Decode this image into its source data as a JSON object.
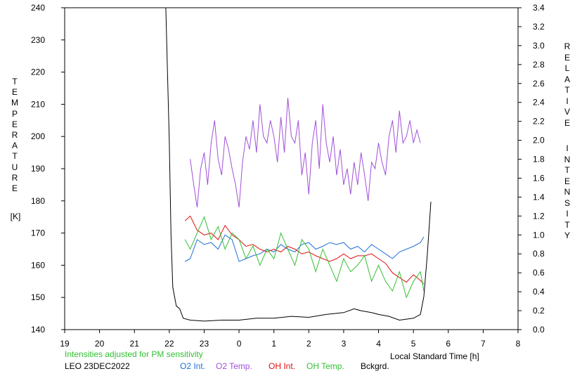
{
  "chart_data": {
    "type": "line",
    "xlabel": "Local Standard Time [h]",
    "x_ticks": [
      "19",
      "20",
      "21",
      "22",
      "23",
      "0",
      "1",
      "2",
      "3",
      "4",
      "5",
      "6",
      "7",
      "8"
    ],
    "x_range": [
      19,
      32
    ],
    "y_left": {
      "label_letters": [
        "T",
        "E",
        "M",
        "P",
        "E",
        "R",
        "A",
        "T",
        "U",
        "R",
        "E"
      ],
      "unit": "[K]",
      "range": [
        140,
        240
      ],
      "ticks": [
        "140",
        "150",
        "160",
        "170",
        "180",
        "190",
        "200",
        "210",
        "220",
        "230",
        "240"
      ]
    },
    "y_right": {
      "label_word1": [
        "R",
        "E",
        "L",
        "A",
        "T",
        "I",
        "V",
        "E"
      ],
      "label_word2": [
        "I",
        "N",
        "T",
        "E",
        "N",
        "S",
        "I",
        "T",
        "Y"
      ],
      "range": [
        0.0,
        3.4
      ],
      "ticks": [
        "0.0",
        "0.2",
        "0.4",
        "0.6",
        "0.8",
        "1.0",
        "1.2",
        "1.4",
        "1.6",
        "1.8",
        "2.0",
        "2.2",
        "2.4",
        "2.6",
        "2.8",
        "3.0",
        "3.2",
        "3.4"
      ]
    },
    "note": "Intensities adjusted for PM sensitivity",
    "station": "LEO 23DEC2022",
    "series": [
      {
        "name": "O2 Int.",
        "color": "#1f6fd6",
        "axis": "right",
        "points": [
          [
            22.45,
            0.72
          ],
          [
            22.6,
            0.75
          ],
          [
            22.8,
            0.95
          ],
          [
            23.0,
            0.9
          ],
          [
            23.2,
            0.92
          ],
          [
            23.4,
            0.85
          ],
          [
            23.6,
            1.0
          ],
          [
            23.8,
            0.95
          ],
          [
            24.0,
            0.72
          ],
          [
            24.2,
            0.75
          ],
          [
            24.4,
            0.78
          ],
          [
            24.6,
            0.8
          ],
          [
            24.8,
            0.85
          ],
          [
            25.0,
            0.82
          ],
          [
            25.2,
            0.9
          ],
          [
            25.4,
            0.85
          ],
          [
            25.6,
            0.82
          ],
          [
            25.8,
            0.9
          ],
          [
            26.0,
            0.92
          ],
          [
            26.2,
            0.85
          ],
          [
            26.4,
            0.88
          ],
          [
            26.6,
            0.92
          ],
          [
            26.8,
            0.9
          ],
          [
            27.0,
            0.92
          ],
          [
            27.2,
            0.85
          ],
          [
            27.4,
            0.88
          ],
          [
            27.6,
            0.82
          ],
          [
            27.8,
            0.9
          ],
          [
            28.0,
            0.85
          ],
          [
            28.2,
            0.8
          ],
          [
            28.4,
            0.75
          ],
          [
            28.6,
            0.82
          ],
          [
            28.8,
            0.85
          ],
          [
            29.0,
            0.88
          ],
          [
            29.2,
            0.92
          ],
          [
            29.3,
            0.98
          ]
        ]
      },
      {
        "name": "O2 Temp.",
        "color": "#a050d8",
        "axis": "left",
        "points": [
          [
            22.6,
            193
          ],
          [
            22.7,
            185
          ],
          [
            22.8,
            178
          ],
          [
            22.9,
            190
          ],
          [
            23.0,
            195
          ],
          [
            23.1,
            185
          ],
          [
            23.2,
            198
          ],
          [
            23.3,
            205
          ],
          [
            23.4,
            193
          ],
          [
            23.5,
            188
          ],
          [
            23.6,
            200
          ],
          [
            23.7,
            196
          ],
          [
            23.8,
            190
          ],
          [
            23.9,
            185
          ],
          [
            24.0,
            178
          ],
          [
            24.1,
            192
          ],
          [
            24.2,
            200
          ],
          [
            24.3,
            196
          ],
          [
            24.4,
            205
          ],
          [
            24.5,
            195
          ],
          [
            24.6,
            210
          ],
          [
            24.7,
            200
          ],
          [
            24.8,
            198
          ],
          [
            24.9,
            205
          ],
          [
            25.0,
            200
          ],
          [
            25.1,
            192
          ],
          [
            25.2,
            206
          ],
          [
            25.3,
            195
          ],
          [
            25.4,
            212
          ],
          [
            25.5,
            200
          ],
          [
            25.6,
            198
          ],
          [
            25.7,
            205
          ],
          [
            25.8,
            188
          ],
          [
            25.9,
            195
          ],
          [
            26.0,
            182
          ],
          [
            26.1,
            198
          ],
          [
            26.2,
            205
          ],
          [
            26.3,
            190
          ],
          [
            26.4,
            210
          ],
          [
            26.5,
            198
          ],
          [
            26.6,
            192
          ],
          [
            26.7,
            200
          ],
          [
            26.8,
            188
          ],
          [
            26.9,
            196
          ],
          [
            27.0,
            185
          ],
          [
            27.1,
            190
          ],
          [
            27.2,
            182
          ],
          [
            27.3,
            192
          ],
          [
            27.4,
            185
          ],
          [
            27.5,
            195
          ],
          [
            27.6,
            188
          ],
          [
            27.7,
            180
          ],
          [
            27.8,
            192
          ],
          [
            27.9,
            190
          ],
          [
            28.0,
            198
          ],
          [
            28.1,
            192
          ],
          [
            28.2,
            188
          ],
          [
            28.3,
            200
          ],
          [
            28.4,
            205
          ],
          [
            28.5,
            195
          ],
          [
            28.6,
            208
          ],
          [
            28.7,
            198
          ],
          [
            28.8,
            200
          ],
          [
            28.9,
            205
          ],
          [
            29.0,
            198
          ],
          [
            29.1,
            202
          ],
          [
            29.2,
            198
          ]
        ]
      },
      {
        "name": "OH Int.",
        "color": "#e01010",
        "axis": "right",
        "points": [
          [
            22.45,
            1.15
          ],
          [
            22.6,
            1.2
          ],
          [
            22.8,
            1.05
          ],
          [
            23.0,
            1.0
          ],
          [
            23.2,
            1.02
          ],
          [
            23.4,
            0.95
          ],
          [
            23.6,
            1.1
          ],
          [
            23.8,
            1.0
          ],
          [
            24.0,
            0.95
          ],
          [
            24.2,
            0.88
          ],
          [
            24.4,
            0.9
          ],
          [
            24.6,
            0.85
          ],
          [
            24.8,
            0.82
          ],
          [
            25.0,
            0.85
          ],
          [
            25.2,
            0.82
          ],
          [
            25.4,
            0.88
          ],
          [
            25.6,
            0.85
          ],
          [
            25.8,
            0.8
          ],
          [
            26.0,
            0.82
          ],
          [
            26.2,
            0.78
          ],
          [
            26.4,
            0.75
          ],
          [
            26.6,
            0.72
          ],
          [
            26.8,
            0.75
          ],
          [
            27.0,
            0.8
          ],
          [
            27.2,
            0.75
          ],
          [
            27.4,
            0.78
          ],
          [
            27.6,
            0.78
          ],
          [
            27.8,
            0.8
          ],
          [
            28.0,
            0.75
          ],
          [
            28.2,
            0.7
          ],
          [
            28.4,
            0.6
          ],
          [
            28.6,
            0.55
          ],
          [
            28.8,
            0.5
          ],
          [
            29.0,
            0.58
          ],
          [
            29.2,
            0.52
          ],
          [
            29.3,
            0.48
          ]
        ]
      },
      {
        "name": "OH Temp.",
        "color": "#33c033",
        "axis": "left",
        "points": [
          [
            22.45,
            168
          ],
          [
            22.6,
            165
          ],
          [
            22.8,
            170
          ],
          [
            23.0,
            175
          ],
          [
            23.2,
            168
          ],
          [
            23.4,
            172
          ],
          [
            23.6,
            165
          ],
          [
            23.8,
            170
          ],
          [
            24.0,
            168
          ],
          [
            24.2,
            162
          ],
          [
            24.4,
            166
          ],
          [
            24.6,
            160
          ],
          [
            24.8,
            165
          ],
          [
            25.0,
            162
          ],
          [
            25.2,
            170
          ],
          [
            25.4,
            165
          ],
          [
            25.6,
            160
          ],
          [
            25.8,
            168
          ],
          [
            26.0,
            165
          ],
          [
            26.2,
            158
          ],
          [
            26.4,
            165
          ],
          [
            26.6,
            160
          ],
          [
            26.8,
            155
          ],
          [
            27.0,
            162
          ],
          [
            27.2,
            158
          ],
          [
            27.4,
            160
          ],
          [
            27.6,
            163
          ],
          [
            27.8,
            155
          ],
          [
            28.0,
            160
          ],
          [
            28.2,
            155
          ],
          [
            28.4,
            152
          ],
          [
            28.6,
            158
          ],
          [
            28.8,
            150
          ],
          [
            29.0,
            155
          ],
          [
            29.2,
            158
          ],
          [
            29.3,
            152
          ]
        ]
      },
      {
        "name": "Bckgrd.",
        "color": "#000000",
        "axis": "right",
        "points": [
          [
            21.9,
            3.4
          ],
          [
            22.0,
            2.0
          ],
          [
            22.05,
            1.0
          ],
          [
            22.1,
            0.45
          ],
          [
            22.2,
            0.25
          ],
          [
            22.3,
            0.22
          ],
          [
            22.4,
            0.12
          ],
          [
            22.6,
            0.1
          ],
          [
            23.0,
            0.09
          ],
          [
            23.5,
            0.1
          ],
          [
            24.0,
            0.1
          ],
          [
            24.5,
            0.12
          ],
          [
            25.0,
            0.12
          ],
          [
            25.5,
            0.14
          ],
          [
            26.0,
            0.13
          ],
          [
            26.5,
            0.16
          ],
          [
            27.0,
            0.18
          ],
          [
            27.3,
            0.22
          ],
          [
            27.5,
            0.2
          ],
          [
            27.8,
            0.18
          ],
          [
            28.0,
            0.16
          ],
          [
            28.3,
            0.14
          ],
          [
            28.6,
            0.1
          ],
          [
            29.0,
            0.12
          ],
          [
            29.2,
            0.16
          ],
          [
            29.3,
            0.35
          ],
          [
            29.4,
            0.8
          ],
          [
            29.5,
            1.35
          ]
        ]
      }
    ]
  }
}
